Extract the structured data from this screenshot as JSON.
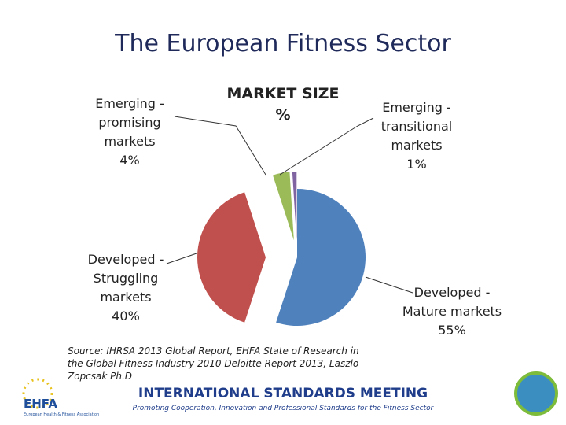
{
  "slide_title": "The European Fitness Sector",
  "chart_data": {
    "type": "pie",
    "title": "MARKET SIZE %",
    "categories": [
      "Developed - Mature markets",
      "Developed - Struggling markets",
      "Emerging - promising markets",
      "Emerging - transitional markets"
    ],
    "values": [
      55,
      40,
      4,
      1
    ],
    "value_labels": [
      "55%",
      "40%",
      "4%",
      "1%"
    ],
    "colors": [
      "#4f81bd",
      "#c0504d",
      "#9bbb59",
      "#8064a2"
    ]
  },
  "source": "Source: IHRSA 2013 Global Report, EHFA State of Research in the Global Fitness Industry 2010 Deloitte Report 2013, Laszlo Zopcsak Ph.D",
  "footer": {
    "meeting": "INTERNATIONAL STANDARDS MEETING",
    "tagline": "Promoting Cooperation, Innovation and Professional Standards for the Fitness Sector",
    "logo": "EHFA",
    "logo_caption": "European Health & Fitness Association"
  }
}
